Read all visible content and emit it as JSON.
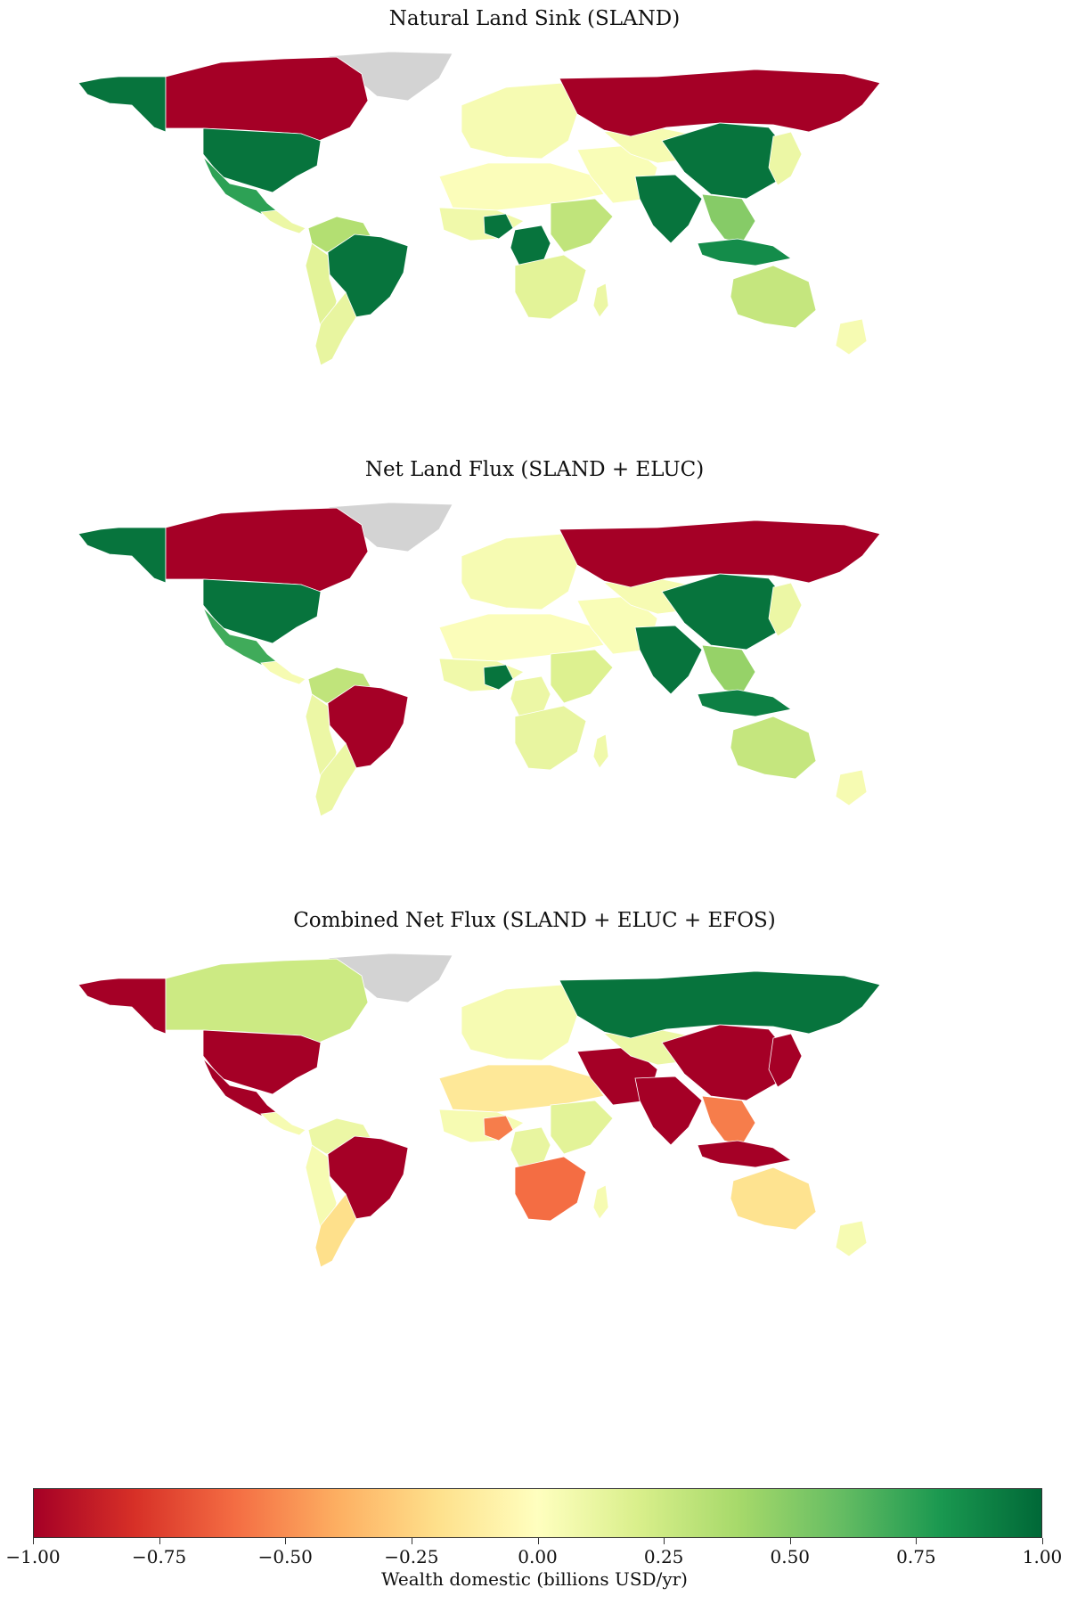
{
  "maps": [
    {
      "title": "Natural Land Sink (SLAND)",
      "regions": {
        "alaska": 0.95,
        "canada": -1.0,
        "greenland": null,
        "usa": 0.95,
        "mexico": 0.75,
        "central_america": 0.1,
        "colombia_venezuela": 0.35,
        "brazil": 0.95,
        "andes": 0.15,
        "southern_cone": 0.12,
        "europe": 0.05,
        "north_africa": 0.02,
        "west_africa": 0.08,
        "nigeria": 0.95,
        "congo": 0.95,
        "east_africa": 0.3,
        "southern_africa": 0.15,
        "madagascar": 0.1,
        "middle_east": 0.03,
        "russia": -1.0,
        "central_asia": 0.05,
        "china": 0.95,
        "india": 0.95,
        "southeast_asia": 0.5,
        "indonesia": 0.85,
        "japan": 0.1,
        "australia": 0.28,
        "new_zealand": 0.05
      }
    },
    {
      "title": "Net Land Flux (SLAND + ELUC)",
      "regions": {
        "alaska": 0.95,
        "canada": -1.0,
        "greenland": null,
        "usa": 0.95,
        "mexico": 0.7,
        "central_america": 0.05,
        "colombia_venezuela": 0.3,
        "brazil": -1.0,
        "andes": 0.1,
        "southern_cone": 0.1,
        "europe": 0.05,
        "north_africa": 0.02,
        "west_africa": 0.08,
        "nigeria": 0.95,
        "congo": 0.1,
        "east_africa": 0.18,
        "southern_africa": 0.12,
        "madagascar": 0.08,
        "middle_east": 0.03,
        "russia": -1.0,
        "central_asia": 0.05,
        "china": 0.95,
        "india": 0.95,
        "southeast_asia": 0.45,
        "indonesia": 0.9,
        "japan": 0.1,
        "australia": 0.28,
        "new_zealand": 0.05
      }
    },
    {
      "title": "Combined Net Flux (SLAND + ELUC + EFOS)",
      "regions": {
        "alaska": -1.0,
        "canada": 0.25,
        "greenland": null,
        "usa": -1.0,
        "mexico": -1.0,
        "central_america": 0.05,
        "colombia_venezuela": 0.1,
        "brazil": -1.0,
        "andes": 0.05,
        "southern_cone": -0.2,
        "europe": 0.05,
        "north_africa": -0.15,
        "west_africa": 0.05,
        "nigeria": -0.55,
        "congo": 0.12,
        "east_africa": 0.15,
        "southern_africa": -0.6,
        "madagascar": 0.05,
        "middle_east": -1.0,
        "russia": 0.95,
        "central_asia": 0.1,
        "china": -1.0,
        "india": -1.0,
        "southeast_asia": -0.55,
        "indonesia": -1.0,
        "japan": -1.0,
        "australia": -0.18,
        "new_zealand": 0.05
      }
    }
  ],
  "colorbar": {
    "label": "Wealth domestic (billions USD/yr)",
    "min": -1.0,
    "max": 1.0,
    "ticks": [
      "−1.00",
      "−0.75",
      "−0.50",
      "−0.25",
      "0.00",
      "0.25",
      "0.50",
      "0.75",
      "1.00"
    ],
    "colors": [
      "#a50026",
      "#d73027",
      "#f46d43",
      "#fdae61",
      "#fee08b",
      "#ffffbf",
      "#d9ef8b",
      "#a6d96a",
      "#66bd63",
      "#1a9850",
      "#006837"
    ],
    "missing_color": "#d3d3d3"
  }
}
